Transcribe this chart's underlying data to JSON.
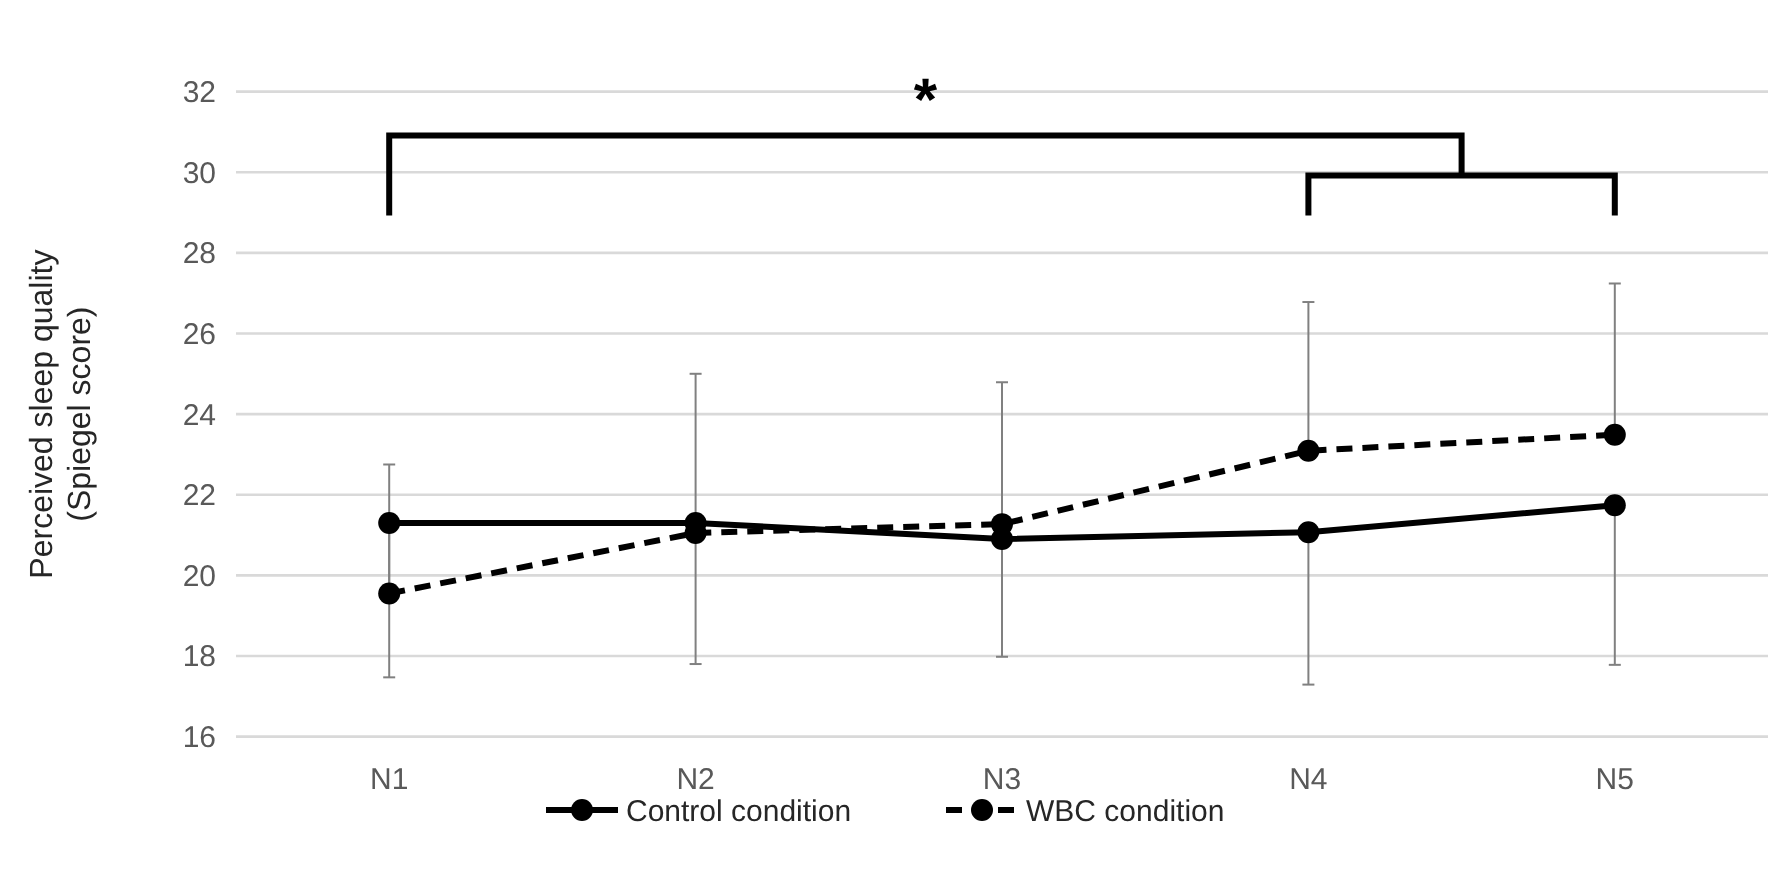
{
  "chart_data": {
    "type": "line",
    "ylabel": "Perceived sleep quality\n(Spiegel score)",
    "categories": [
      "N1",
      "N2",
      "N3",
      "N4",
      "N5"
    ],
    "ylim": [
      16,
      32
    ],
    "yticks": [
      16,
      18,
      20,
      22,
      24,
      26,
      28,
      30,
      32
    ],
    "grid": "y",
    "legend": "bottom",
    "marker": "circle",
    "annotations": [
      "*"
    ],
    "series": [
      {
        "name": "Control condition",
        "color": "#000000",
        "line_style": "solid",
        "values": [
          21.3,
          21.3,
          20.9,
          21.07,
          21.74
        ],
        "errors": [
          [
            17.47,
            21.3
          ],
          [
            17.8,
            21.3
          ],
          [
            17.98,
            20.9
          ],
          [
            17.29,
            21.07
          ],
          [
            17.78,
            21.74
          ]
        ]
      },
      {
        "name": "WBC condition",
        "color": "#000000",
        "line_style": "dashed",
        "values": [
          19.55,
          21.05,
          21.27,
          23.09,
          23.49
        ],
        "errors": [
          [
            19.55,
            22.75
          ],
          [
            21.05,
            25.0
          ],
          [
            21.27,
            24.79
          ],
          [
            23.09,
            26.78
          ],
          [
            23.49,
            27.24
          ]
        ]
      }
    ]
  }
}
